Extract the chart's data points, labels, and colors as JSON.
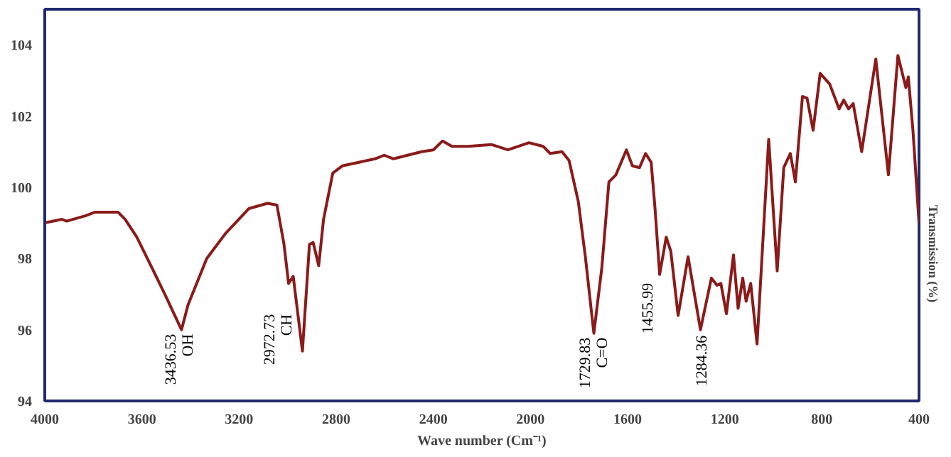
{
  "chart_data": {
    "type": "line",
    "xlabel": "Wave number (Cm⁻¹)",
    "ylabel": "Transmission (%)",
    "xlim": [
      4000,
      400
    ],
    "ylim": [
      94,
      105
    ],
    "xticks": [
      4000,
      3600,
      3200,
      2800,
      2400,
      2000,
      1600,
      1200,
      800,
      400
    ],
    "yticks": [
      94,
      96,
      98,
      100,
      102,
      104
    ],
    "line_style": "solid",
    "series": [
      {
        "color": "#8b1a1a",
        "x": [
          4000,
          3929,
          3910,
          3833,
          3794,
          3737,
          3698,
          3669,
          3621,
          3563,
          3506,
          3437,
          3410,
          3333,
          3256,
          3160,
          3083,
          3044,
          3015,
          2996,
          2977,
          2939,
          2910,
          2895,
          2872,
          2852,
          2814,
          2775,
          2640,
          2602,
          2564,
          2448,
          2400,
          2362,
          2323,
          2257,
          2161,
          2093,
          2006,
          1948,
          1919,
          1870,
          1841,
          1803,
          1774,
          1739,
          1706,
          1677,
          1648,
          1605,
          1580,
          1551,
          1526,
          1503,
          1487,
          1468,
          1441,
          1422,
          1392,
          1351,
          1300,
          1255,
          1232,
          1216,
          1193,
          1164,
          1145,
          1126,
          1112,
          1093,
          1067,
          1019,
          984,
          957,
          930,
          909,
          880,
          861,
          836,
          807,
          768,
          729,
          710,
          690,
          671,
          636,
          578,
          526,
          487,
          454,
          444,
          425,
          400
        ],
        "values": [
          99.0,
          99.1,
          99.05,
          99.2,
          99.3,
          99.3,
          99.3,
          99.1,
          98.6,
          97.8,
          97.0,
          96.0,
          96.7,
          98.0,
          98.7,
          99.4,
          99.55,
          99.5,
          98.4,
          97.3,
          97.5,
          95.4,
          98.4,
          98.45,
          97.8,
          99.1,
          100.4,
          100.6,
          100.8,
          100.9,
          100.8,
          101.0,
          101.05,
          101.3,
          101.15,
          101.15,
          101.2,
          101.05,
          101.25,
          101.15,
          100.95,
          101.0,
          100.75,
          99.6,
          98.05,
          95.9,
          97.75,
          100.15,
          100.35,
          101.05,
          100.6,
          100.55,
          100.95,
          100.7,
          99.4,
          97.55,
          98.6,
          98.2,
          96.4,
          98.05,
          96.0,
          97.45,
          97.25,
          97.3,
          96.45,
          98.1,
          96.6,
          97.45,
          96.8,
          97.3,
          95.6,
          101.35,
          97.65,
          100.55,
          100.95,
          100.15,
          102.55,
          102.5,
          101.6,
          103.2,
          102.9,
          102.2,
          102.45,
          102.2,
          102.35,
          101.0,
          103.6,
          100.35,
          103.7,
          102.8,
          103.1,
          101.6,
          99.0
        ]
      }
    ],
    "annotations": [
      {
        "text": "3436.53\nOH",
        "x": 3437,
        "y": 96.0
      },
      {
        "text": "2972.73\nCH",
        "x": 2939,
        "y": 95.4
      },
      {
        "text": "1729.83\nC=O",
        "x": 1739,
        "y": 95.9
      },
      {
        "text": "1455.99",
        "x": 1468,
        "y": 97.55
      },
      {
        "text": "1284.36",
        "x": 1300,
        "y": 96.0
      }
    ]
  }
}
